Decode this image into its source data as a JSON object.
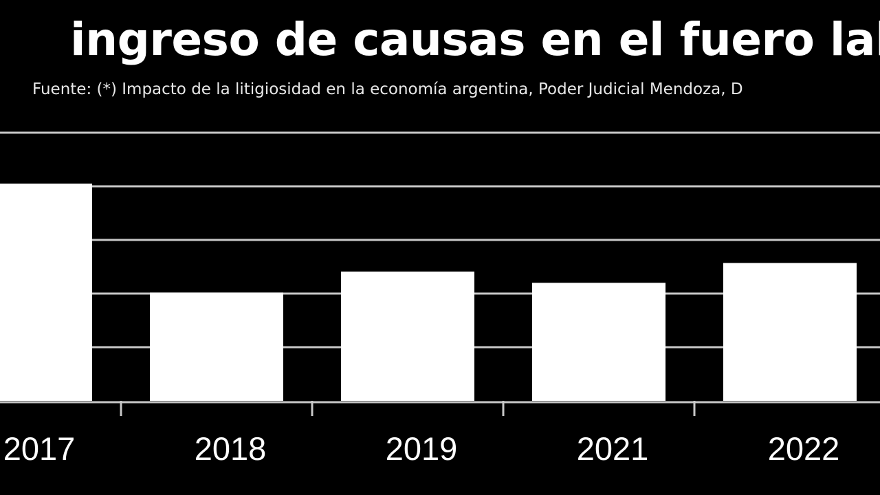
{
  "chart_data": {
    "type": "bar",
    "title": "ingreso de causas en el fuero labo",
    "subtitle": "Fuente: (*) Impacto de la litigiosidad en la economía argentina, Poder Judicial Mendoza, D",
    "categories": [
      "2017",
      "2018",
      "2019",
      "2021",
      "2022"
    ],
    "values": [
      4.05,
      2.02,
      2.41,
      2.2,
      2.57
    ],
    "xlabel": "",
    "ylabel": "",
    "ylim": [
      0,
      5
    ],
    "grid": true,
    "legend": "none",
    "colors": {
      "background": "#000000",
      "bar": "#ffffff",
      "grid": "#c8c8c8",
      "text": "#ffffff"
    }
  }
}
